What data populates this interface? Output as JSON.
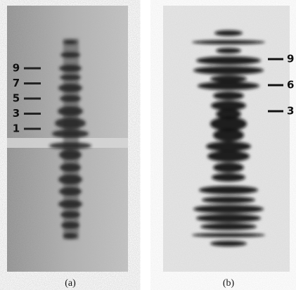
{
  "panels": [
    {
      "caption": "(a)",
      "markers": [
        "9",
        "7",
        "5",
        "3",
        "1"
      ]
    },
    {
      "caption": "(b)",
      "markers": [
        "9",
        "6",
        "3"
      ]
    }
  ]
}
